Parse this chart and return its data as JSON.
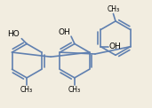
{
  "bg_color": "#f2ede0",
  "bond_color": "#6080b0",
  "text_color": "#000000",
  "lw": 1.2,
  "r": 0.3,
  "figsize": [
    1.71,
    1.22
  ],
  "dpi": 100,
  "xlim": [
    -1.3,
    1.35
  ],
  "ylim": [
    -0.78,
    0.82
  ]
}
